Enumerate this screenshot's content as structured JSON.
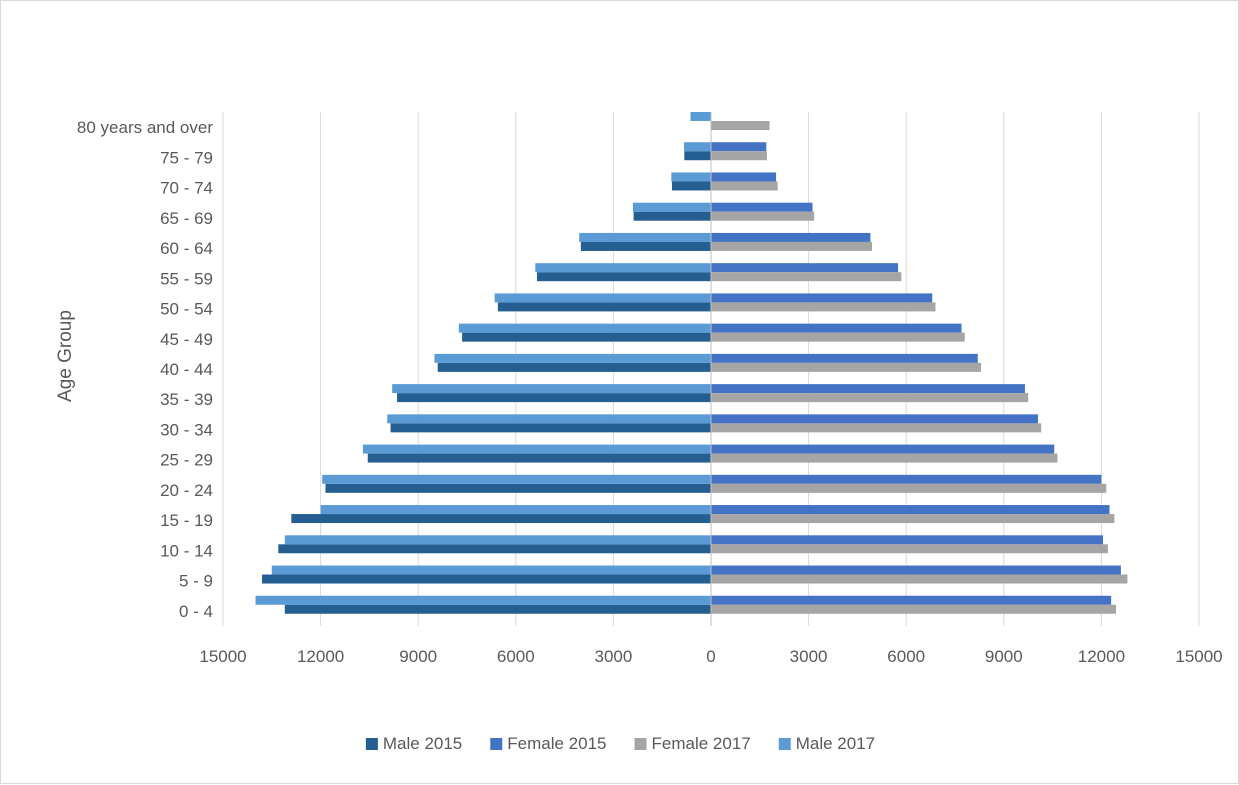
{
  "chart_data": {
    "type": "bar",
    "orientation": "horizontal",
    "title": "",
    "xlabel": "",
    "ylabel": "Age Group",
    "xlim": [
      -15000,
      15000
    ],
    "x_ticks": [
      -15000,
      -12000,
      -9000,
      -6000,
      -3000,
      0,
      3000,
      6000,
      9000,
      12000,
      15000
    ],
    "x_tick_labels": [
      "15000",
      "12000",
      "9000",
      "6000",
      "3000",
      "0",
      "3000",
      "6000",
      "9000",
      "12000",
      "15000"
    ],
    "grid": "vertical",
    "legend_position": "bottom",
    "categories": [
      "0 - 4",
      "5 - 9",
      "10 - 14",
      "15 - 19",
      "20 - 24",
      "25 - 29",
      "30 - 34",
      "35 - 39",
      "40 - 44",
      "45 - 49",
      "50 - 54",
      "55 - 59",
      "60 - 64",
      "65 - 69",
      "70 - 74",
      "75 - 79",
      "80 years and over"
    ],
    "series": [
      {
        "name": "Male 2015",
        "color": "#255e91",
        "side": "left",
        "slot": 1,
        "values": [
          13100,
          13800,
          13300,
          12900,
          11850,
          10550,
          9850,
          9650,
          8400,
          7650,
          6550,
          5350,
          4000,
          2380,
          1200,
          820,
          0
        ]
      },
      {
        "name": "Female 2015",
        "color": "#4472c4",
        "side": "right",
        "slot": 0,
        "values": [
          12300,
          12600,
          12050,
          12250,
          12000,
          10550,
          10050,
          9650,
          8200,
          7700,
          6800,
          5750,
          4900,
          3120,
          2000,
          1700,
          0
        ]
      },
      {
        "name": "Female 2017",
        "color": "#a5a5a5",
        "side": "right",
        "slot": 1,
        "values": [
          12450,
          12800,
          12200,
          12400,
          12150,
          10650,
          10150,
          9750,
          8300,
          7800,
          6900,
          5850,
          4950,
          3170,
          2050,
          1720,
          1800
        ]
      },
      {
        "name": "Male 2017",
        "color": "#5b9bd5",
        "side": "left",
        "slot": 0,
        "values": [
          14000,
          13500,
          13100,
          12000,
          11950,
          10700,
          9950,
          9800,
          8500,
          7750,
          6650,
          5400,
          4050,
          2400,
          1220,
          830,
          630
        ]
      }
    ]
  }
}
